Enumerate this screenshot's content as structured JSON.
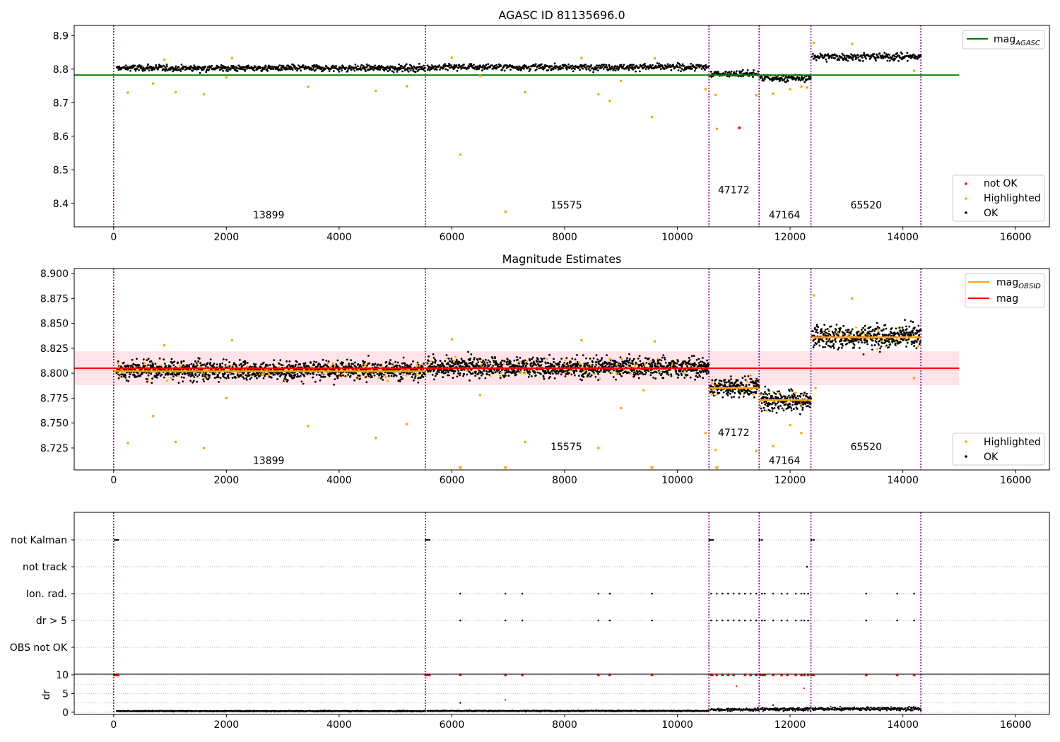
{
  "chart_data": [
    {
      "type": "scatter",
      "title": "AGASC ID 81135696.0",
      "xlim": [
        -700,
        16600
      ],
      "ylim": [
        8.33,
        8.93
      ],
      "xticks": [
        0,
        2000,
        4000,
        6000,
        8000,
        10000,
        12000,
        14000,
        16000
      ],
      "xtick_labels": [
        "0",
        "2000",
        "4000",
        "6000",
        "8000",
        "10000",
        "12000",
        "14000",
        "16000"
      ],
      "yticks": [
        8.4,
        8.5,
        8.6,
        8.7,
        8.8,
        8.9
      ],
      "ytick_labels": [
        "8.4",
        "8.5",
        "8.6",
        "8.7",
        "8.8",
        "8.9"
      ],
      "colors": {
        "ok": "#000000",
        "highlighted": "#ffa500",
        "not_ok": "#ff0000",
        "mag_agasc": "#008000",
        "obsid_boundary": "#800080"
      },
      "obsid_boundaries": [
        0,
        5530,
        10560,
        11450,
        12370,
        14320
      ],
      "obsid_labels": [
        {
          "text": "13899",
          "x": 2750,
          "y": 8.355
        },
        {
          "text": "15575",
          "x": 8030,
          "y": 8.385
        },
        {
          "text": "47172",
          "x": 11000,
          "y": 8.43
        },
        {
          "text": "47164",
          "x": 11900,
          "y": 8.355
        },
        {
          "text": "65520",
          "x": 13350,
          "y": 8.385
        }
      ],
      "legend_top": {
        "position": "top-right",
        "entries": [
          {
            "label_main": "mag",
            "label_sub": "AGASC",
            "marker": "line",
            "color": "#008000"
          }
        ]
      },
      "legend_bottom": {
        "position": "bottom-right",
        "entries": [
          {
            "label": "not OK",
            "marker": "dot",
            "color": "#ff0000"
          },
          {
            "label": "Highlighted",
            "marker": "dot",
            "color": "#ffa500"
          },
          {
            "label": "OK",
            "marker": "dot",
            "color": "#000000"
          }
        ]
      },
      "mag_agasc": {
        "value": 8.782,
        "x_range": [
          -700,
          15000
        ]
      },
      "ok_segments": [
        {
          "x_range": [
            50,
            5530
          ],
          "mean": 8.803,
          "sd": 0.0075
        },
        {
          "x_range": [
            5560,
            10560
          ],
          "mean": 8.806,
          "sd": 0.0075
        },
        {
          "x_range": [
            10580,
            11450
          ],
          "mean": 8.786,
          "sd": 0.0075
        },
        {
          "x_range": [
            11470,
            12370
          ],
          "mean": 8.773,
          "sd": 0.008
        },
        {
          "x_range": [
            12390,
            14320
          ],
          "mean": 8.837,
          "sd": 0.009
        }
      ],
      "highlighted_points": [
        {
          "x": 250,
          "y": 8.73
        },
        {
          "x": 700,
          "y": 8.757
        },
        {
          "x": 1100,
          "y": 8.731
        },
        {
          "x": 1600,
          "y": 8.725
        },
        {
          "x": 3450,
          "y": 8.747
        },
        {
          "x": 4650,
          "y": 8.735
        },
        {
          "x": 5200,
          "y": 8.749
        },
        {
          "x": 6150,
          "y": 8.545
        },
        {
          "x": 6950,
          "y": 8.375
        },
        {
          "x": 7300,
          "y": 8.731
        },
        {
          "x": 8600,
          "y": 8.725
        },
        {
          "x": 8800,
          "y": 8.705
        },
        {
          "x": 9550,
          "y": 8.657
        },
        {
          "x": 10500,
          "y": 8.74
        },
        {
          "x": 10700,
          "y": 8.622
        },
        {
          "x": 10680,
          "y": 8.723
        },
        {
          "x": 11400,
          "y": 8.722
        },
        {
          "x": 11700,
          "y": 8.727
        },
        {
          "x": 12000,
          "y": 8.74
        },
        {
          "x": 12200,
          "y": 8.748
        },
        {
          "x": 2000,
          "y": 8.775
        },
        {
          "x": 6500,
          "y": 8.78
        },
        {
          "x": 9000,
          "y": 8.765
        },
        {
          "x": 12300,
          "y": 8.745
        },
        {
          "x": 900,
          "y": 8.828
        },
        {
          "x": 2100,
          "y": 8.833
        },
        {
          "x": 6000,
          "y": 8.834
        },
        {
          "x": 8300,
          "y": 8.833
        },
        {
          "x": 9600,
          "y": 8.832
        },
        {
          "x": 12420,
          "y": 8.878
        },
        {
          "x": 13100,
          "y": 8.875
        },
        {
          "x": 14200,
          "y": 8.795
        }
      ],
      "not_ok_points": [
        {
          "x": 11100,
          "y": 8.625
        }
      ]
    },
    {
      "type": "scatter",
      "title": "Magnitude Estimates",
      "xlim": [
        -700,
        16600
      ],
      "ylim": [
        8.703,
        8.905
      ],
      "xticks": [
        0,
        2000,
        4000,
        6000,
        8000,
        10000,
        12000,
        14000,
        16000
      ],
      "xtick_labels": [
        "0",
        "2000",
        "4000",
        "6000",
        "8000",
        "10000",
        "12000",
        "14000",
        "16000"
      ],
      "yticks": [
        8.725,
        8.75,
        8.775,
        8.8,
        8.825,
        8.85,
        8.875,
        8.9
      ],
      "ytick_labels": [
        "8.725",
        "8.750",
        "8.775",
        "8.800",
        "8.825",
        "8.850",
        "8.875",
        "8.900"
      ],
      "colors": {
        "ok": "#000000",
        "highlighted": "#ffa500",
        "mag_obsid": "#ffa500",
        "mag": "#ff0000",
        "band": "#ffc0cb"
      },
      "obsid_boundaries": [
        0,
        5530,
        10560,
        11450,
        12370,
        14320
      ],
      "obsid_labels": [
        {
          "text": "13899",
          "x": 2750,
          "y": 8.709
        },
        {
          "text": "15575",
          "x": 8030,
          "y": 8.723
        },
        {
          "text": "47172",
          "x": 11000,
          "y": 8.737
        },
        {
          "text": "47164",
          "x": 11900,
          "y": 8.709
        },
        {
          "text": "65520",
          "x": 13350,
          "y": 8.723
        }
      ],
      "legend_top": {
        "position": "top-right",
        "entries": [
          {
            "label_main": "mag",
            "label_sub": "OBSID",
            "marker": "line",
            "color": "#ffa500"
          },
          {
            "label": "mag",
            "marker": "line",
            "color": "#ff0000"
          }
        ]
      },
      "legend_bottom": {
        "position": "bottom-right",
        "entries": [
          {
            "label": "Highlighted",
            "marker": "dot",
            "color": "#ffa500"
          },
          {
            "label": "OK",
            "marker": "dot",
            "color": "#000000"
          }
        ]
      },
      "mag": {
        "value": 8.805,
        "band": [
          8.788,
          8.822
        ],
        "x_range": [
          -700,
          15000
        ]
      },
      "mag_obsid": [
        {
          "x_range": [
            0,
            5530
          ],
          "value": 8.802
        },
        {
          "x_range": [
            5530,
            10560
          ],
          "value": 8.805
        },
        {
          "x_range": [
            10560,
            11450
          ],
          "value": 8.785
        },
        {
          "x_range": [
            11450,
            12370
          ],
          "value": 8.773
        },
        {
          "x_range": [
            12370,
            14320
          ],
          "value": 8.836
        }
      ],
      "ok_segments": [
        {
          "x_range": [
            50,
            5530
          ],
          "mean": 8.803,
          "sd": 0.0075
        },
        {
          "x_range": [
            5560,
            10560
          ],
          "mean": 8.806,
          "sd": 0.0075
        },
        {
          "x_range": [
            10580,
            11450
          ],
          "mean": 8.786,
          "sd": 0.0075
        },
        {
          "x_range": [
            11470,
            12370
          ],
          "mean": 8.773,
          "sd": 0.008
        },
        {
          "x_range": [
            12390,
            14320
          ],
          "mean": 8.837,
          "sd": 0.009
        }
      ],
      "highlighted_points": [
        {
          "x": 250,
          "y": 8.73
        },
        {
          "x": 700,
          "y": 8.757
        },
        {
          "x": 1100,
          "y": 8.731
        },
        {
          "x": 1600,
          "y": 8.725
        },
        {
          "x": 3450,
          "y": 8.747
        },
        {
          "x": 4650,
          "y": 8.735
        },
        {
          "x": 5200,
          "y": 8.749
        },
        {
          "x": 7300,
          "y": 8.731
        },
        {
          "x": 8600,
          "y": 8.725
        },
        {
          "x": 10500,
          "y": 8.74
        },
        {
          "x": 10680,
          "y": 8.723
        },
        {
          "x": 11400,
          "y": 8.722
        },
        {
          "x": 11700,
          "y": 8.727
        },
        {
          "x": 12000,
          "y": 8.748
        },
        {
          "x": 12200,
          "y": 8.74
        },
        {
          "x": 2000,
          "y": 8.775
        },
        {
          "x": 6500,
          "y": 8.778
        },
        {
          "x": 9000,
          "y": 8.765
        },
        {
          "x": 9400,
          "y": 8.783
        },
        {
          "x": 900,
          "y": 8.828
        },
        {
          "x": 2100,
          "y": 8.833
        },
        {
          "x": 6000,
          "y": 8.834
        },
        {
          "x": 8300,
          "y": 8.833
        },
        {
          "x": 9600,
          "y": 8.832
        },
        {
          "x": 12420,
          "y": 8.878
        },
        {
          "x": 13100,
          "y": 8.875
        },
        {
          "x": 14200,
          "y": 8.795
        },
        {
          "x": 12450,
          "y": 8.785
        }
      ],
      "clipped_markers_x": [
        6150,
        6950,
        9550,
        10700
      ]
    },
    {
      "type": "scatter",
      "title": "",
      "xlim": [
        -700,
        16600
      ],
      "categories": [
        "not Kalman",
        "not track",
        "Ion. rad.",
        "dr > 5",
        "OBS not OK"
      ],
      "obsid_boundaries": [
        0,
        5530,
        10560,
        11450,
        12370,
        14320
      ],
      "colors": {
        "point": "#000000",
        "grid": "#b0b0b0",
        "obsid_boundary": "#800080"
      },
      "flag_points": {
        "not Kalman": [
          20,
          50,
          80,
          5540,
          5570,
          5600,
          10570,
          10600,
          10630,
          11460,
          11500,
          12380,
          12420
        ],
        "not track": [
          12300
        ],
        "Ion. rad.": [
          6150,
          6950,
          7250,
          8600,
          8800,
          9550,
          10600,
          10700,
          10800,
          10900,
          11000,
          11100,
          11200,
          11300,
          11400,
          11500,
          11550,
          11700,
          11850,
          11950,
          12100,
          12200,
          12250,
          12320,
          13350,
          13900,
          14200
        ],
        "dr > 5": [
          6150,
          6950,
          7250,
          8600,
          8800,
          9550,
          10600,
          10700,
          10800,
          10900,
          11000,
          11100,
          11200,
          11300,
          11400,
          11500,
          11550,
          11700,
          11850,
          11950,
          12100,
          12200,
          12250,
          12320,
          13350,
          13900,
          14200
        ],
        "OBS not OK": []
      }
    },
    {
      "type": "scatter",
      "xlim": [
        -700,
        16600
      ],
      "ylim": [
        -0.6,
        10.2
      ],
      "ylabel": "dr",
      "xticks": [
        0,
        2000,
        4000,
        6000,
        8000,
        10000,
        12000,
        14000,
        16000
      ],
      "xtick_labels": [
        "0",
        "2000",
        "4000",
        "6000",
        "8000",
        "10000",
        "12000",
        "14000",
        "16000"
      ],
      "yticks": [
        0,
        5,
        10
      ],
      "ytick_labels": [
        "0",
        "5",
        "10"
      ],
      "colors": {
        "ok": "#000000",
        "capped": "#ff0000"
      },
      "obsid_boundaries": [
        0,
        5530,
        10560,
        11450,
        12370,
        14320
      ],
      "ok_segments": [
        {
          "x_range": [
            50,
            5530
          ],
          "mean": 0.3,
          "sd": 0.1
        },
        {
          "x_range": [
            5560,
            10560
          ],
          "mean": 0.35,
          "sd": 0.1
        },
        {
          "x_range": [
            10580,
            11450
          ],
          "mean": 0.7,
          "sd": 0.25
        },
        {
          "x_range": [
            11470,
            12370
          ],
          "mean": 0.8,
          "sd": 0.3
        },
        {
          "x_range": [
            12390,
            14320
          ],
          "mean": 0.9,
          "sd": 0.3
        }
      ],
      "capped_points_x": [
        20,
        50,
        80,
        5540,
        5570,
        5600,
        6150,
        6950,
        7250,
        8600,
        8800,
        9550,
        10600,
        10620,
        10700,
        10800,
        10900,
        11000,
        11200,
        11300,
        11400,
        11480,
        11520,
        11550,
        11700,
        11850,
        11950,
        12100,
        12200,
        12250,
        12320,
        12380,
        12420,
        13350,
        13900,
        14200
      ],
      "outlier_points": [
        {
          "x": 11050,
          "y": 7
        },
        {
          "x": 12250,
          "y": 6.4
        },
        {
          "x": 6950,
          "y": 3.3
        },
        {
          "x": 6150,
          "y": 2.5
        },
        {
          "x": 11700,
          "y": 1.9
        }
      ]
    }
  ]
}
